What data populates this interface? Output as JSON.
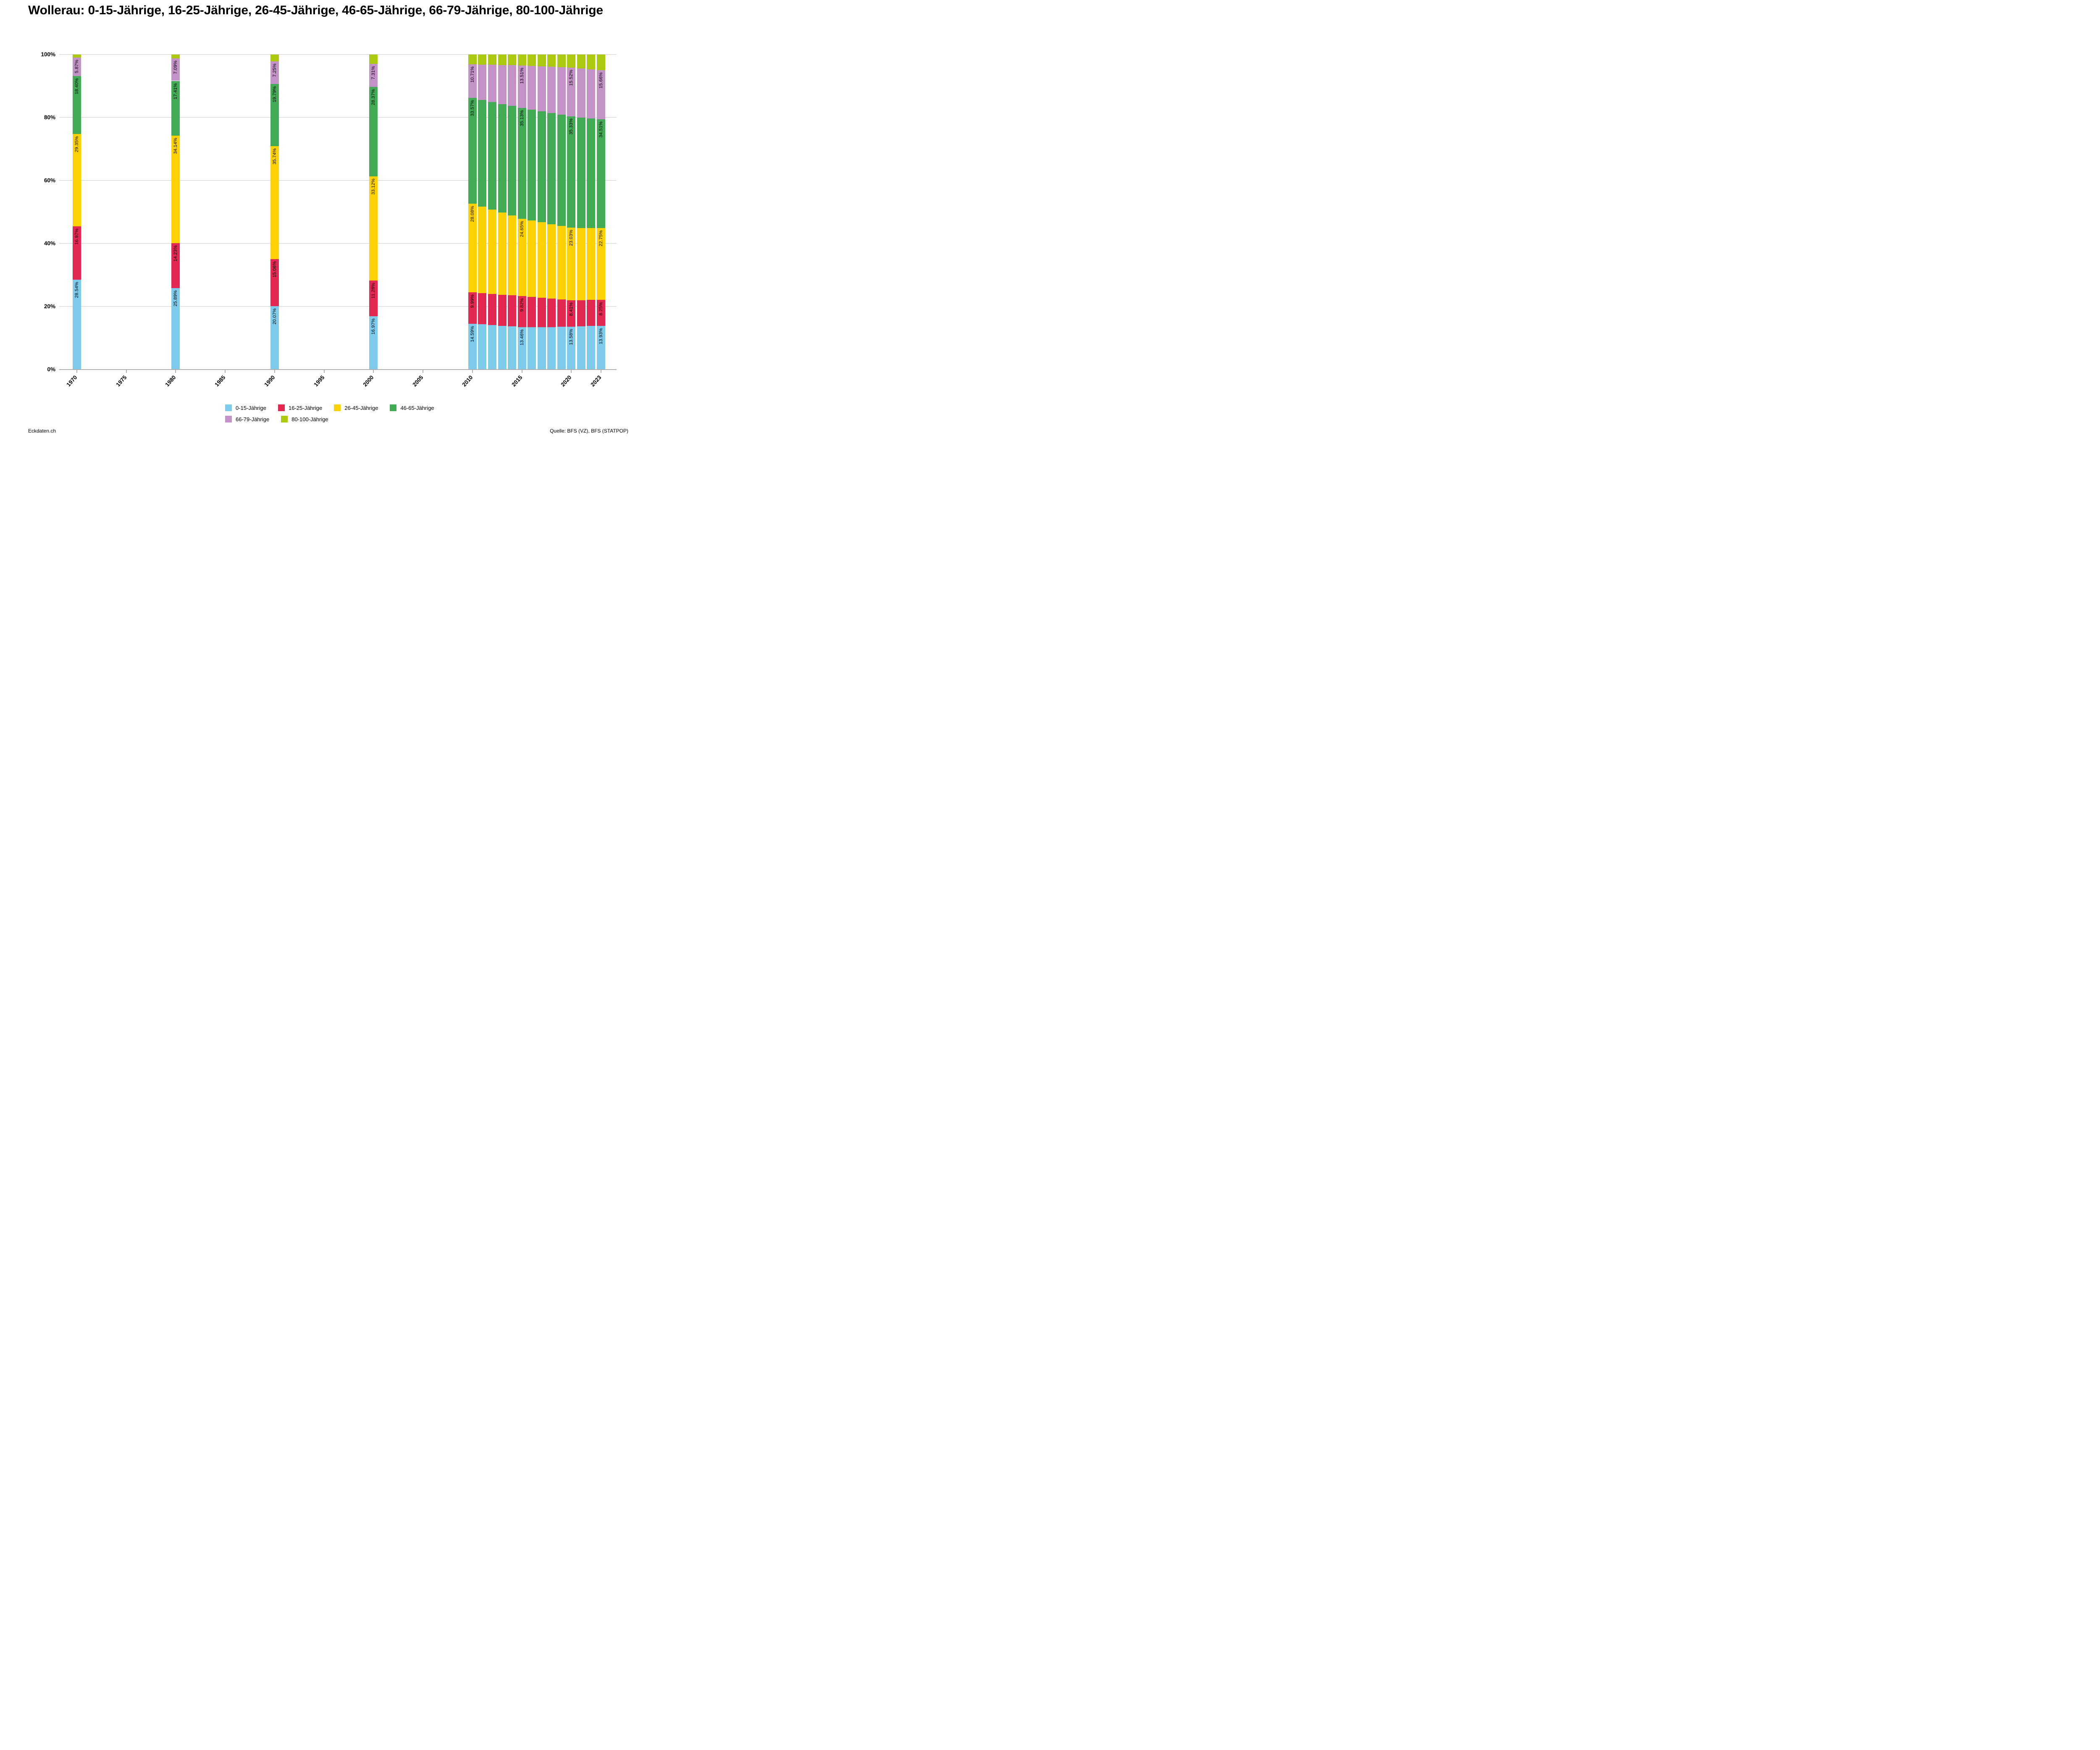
{
  "title": "Wollerau: 0-15-Jährige, 16-25-Jährige, 26-45-Jährige, 46-65-Jährige, 66-79-Jährige, 80-100-Jährige",
  "footer_left": "Eckdaten.ch",
  "footer_right": "Quelle: BFS (VZ), BFS (STATPOP)",
  "colors": {
    "gridline": "#cccccc",
    "axis": "#b0b0b0",
    "text": "#000000",
    "background": "#ffffff"
  },
  "chart_data": {
    "type": "bar",
    "stacked": true,
    "unit": "percent",
    "title": "Wollerau: 0-15-Jährige, 16-25-Jährige, 26-45-Jährige, 46-65-Jährige, 66-79-Jährige, 80-100-Jährige",
    "xlabel": "",
    "ylabel": "",
    "ylim": [
      0,
      100
    ],
    "grid": true,
    "legend_position": "bottom",
    "x_domain": [
      1968.22,
      2024.57
    ],
    "bar_width_years": 0.85,
    "x_ticks": [
      {
        "year": 1970,
        "label": "1970"
      },
      {
        "year": 1975,
        "label": "1975"
      },
      {
        "year": 1980,
        "label": "1980"
      },
      {
        "year": 1985,
        "label": "1985"
      },
      {
        "year": 1990,
        "label": "1990"
      },
      {
        "year": 1995,
        "label": "1995"
      },
      {
        "year": 2000,
        "label": "2000"
      },
      {
        "year": 2005,
        "label": "2005"
      },
      {
        "year": 2010,
        "label": "2010"
      },
      {
        "year": 2015,
        "label": "2015"
      },
      {
        "year": 2020,
        "label": "2020"
      },
      {
        "year": 2023,
        "label": "2023"
      }
    ],
    "y_ticks": [
      {
        "pct": 0,
        "label": "0%"
      },
      {
        "pct": 20,
        "label": "20%"
      },
      {
        "pct": 40,
        "label": "40%"
      },
      {
        "pct": 60,
        "label": "60%"
      },
      {
        "pct": 80,
        "label": "80%"
      },
      {
        "pct": 100,
        "label": "100%"
      }
    ],
    "series": [
      {
        "name": "0-15-Jährige",
        "color": "#7ecbec"
      },
      {
        "name": "16-25-Jährige",
        "color": "#e32852"
      },
      {
        "name": "26-45-Jährige",
        "color": "#fdd103"
      },
      {
        "name": "46-65-Jährige",
        "color": "#43ab55"
      },
      {
        "name": "66-79-Jährige",
        "color": "#c392c6"
      },
      {
        "name": "80-100-Jährige",
        "color": "#abc90e"
      }
    ],
    "legend_rows": [
      [
        0,
        1,
        2,
        3
      ],
      [
        4,
        5
      ]
    ],
    "bars": [
      {
        "year": 1970,
        "labeled": true,
        "values": [
          28.54,
          16.97,
          29.35,
          18.4,
          5.87,
          0.87
        ],
        "labels": [
          "28.54%",
          "16.97%",
          "29.35%",
          "18.40%",
          "5.87%",
          null
        ]
      },
      {
        "year": 1980,
        "labeled": true,
        "values": [
          25.89,
          14.23,
          34.14,
          17.41,
          7.09,
          1.24
        ],
        "labels": [
          "25.89%",
          "14.23%",
          "34.14%",
          "17.41%",
          "7.09%",
          null
        ]
      },
      {
        "year": 1990,
        "labeled": true,
        "values": [
          20.07,
          15.06,
          35.74,
          19.79,
          7.25,
          2.09
        ],
        "labels": [
          "20.07%",
          "15.06%",
          "35.74%",
          "19.79%",
          "7.25%",
          null
        ]
      },
      {
        "year": 2000,
        "labeled": true,
        "values": [
          16.97,
          11.28,
          33.12,
          28.37,
          7.31,
          2.95
        ],
        "labels": [
          "16.97%",
          "11.28%",
          "33.12%",
          "28.37%",
          "7.31%",
          null
        ]
      },
      {
        "year": 2010,
        "labeled": true,
        "values": [
          14.59,
          9.99,
          28.08,
          33.57,
          10.71,
          3.06
        ],
        "labels": [
          "14.59%",
          "9.99%",
          "28.08%",
          "33.57%",
          "10.71%",
          null
        ]
      },
      {
        "year": 2011,
        "labeled": false,
        "values": [
          14.36,
          9.96,
          27.39,
          33.88,
          11.27,
          3.14
        ],
        "labels": [
          null,
          null,
          null,
          null,
          null,
          null
        ]
      },
      {
        "year": 2012,
        "labeled": false,
        "values": [
          14.14,
          9.92,
          26.71,
          34.19,
          11.83,
          3.21
        ],
        "labels": [
          null,
          null,
          null,
          null,
          null,
          null
        ]
      },
      {
        "year": 2013,
        "labeled": false,
        "values": [
          13.91,
          9.89,
          26.02,
          34.5,
          12.39,
          3.29
        ],
        "labels": [
          null,
          null,
          null,
          null,
          null,
          null
        ]
      },
      {
        "year": 2014,
        "labeled": false,
        "values": [
          13.69,
          9.85,
          25.34,
          34.82,
          12.95,
          3.35
        ],
        "labels": [
          null,
          null,
          null,
          null,
          null,
          null
        ]
      },
      {
        "year": 2015,
        "labeled": true,
        "values": [
          13.46,
          9.82,
          24.65,
          35.13,
          13.51,
          3.43
        ],
        "labels": [
          "13.46%",
          "9.82%",
          "24.65%",
          "35.13%",
          "13.51%",
          null
        ]
      },
      {
        "year": 2016,
        "labeled": false,
        "values": [
          13.48,
          9.54,
          24.33,
          35.17,
          13.91,
          3.57
        ],
        "labels": [
          null,
          null,
          null,
          null,
          null,
          null
        ]
      },
      {
        "year": 2017,
        "labeled": false,
        "values": [
          13.51,
          9.26,
          24.0,
          35.21,
          14.31,
          3.71
        ],
        "labels": [
          null,
          null,
          null,
          null,
          null,
          null
        ]
      },
      {
        "year": 2018,
        "labeled": false,
        "values": [
          13.53,
          8.97,
          23.68,
          35.25,
          14.71,
          3.86
        ],
        "labels": [
          null,
          null,
          null,
          null,
          null,
          null
        ]
      },
      {
        "year": 2019,
        "labeled": false,
        "values": [
          13.56,
          8.69,
          23.35,
          35.29,
          15.12,
          3.99
        ],
        "labels": [
          null,
          null,
          null,
          null,
          null,
          null
        ]
      },
      {
        "year": 2020,
        "labeled": true,
        "values": [
          13.58,
          8.41,
          23.03,
          35.33,
          15.52,
          4.13
        ],
        "labels": [
          "13.58%",
          "8.41%",
          "23.03%",
          "35.33%",
          "15.52%",
          null
        ]
      },
      {
        "year": 2021,
        "labeled": false,
        "values": [
          13.7,
          8.36,
          22.94,
          35.06,
          15.57,
          4.37
        ],
        "labels": [
          null,
          null,
          null,
          null,
          null,
          null
        ]
      },
      {
        "year": 2022,
        "labeled": false,
        "values": [
          13.81,
          8.3,
          22.84,
          34.78,
          15.61,
          4.66
        ],
        "labels": [
          null,
          null,
          null,
          null,
          null,
          null
        ]
      },
      {
        "year": 2023,
        "labeled": true,
        "values": [
          13.93,
          8.25,
          22.75,
          34.51,
          15.66,
          4.9
        ],
        "labels": [
          "13.93%",
          "8.25%",
          "22.75%",
          "34.51%",
          "15.66%",
          null
        ]
      }
    ]
  }
}
